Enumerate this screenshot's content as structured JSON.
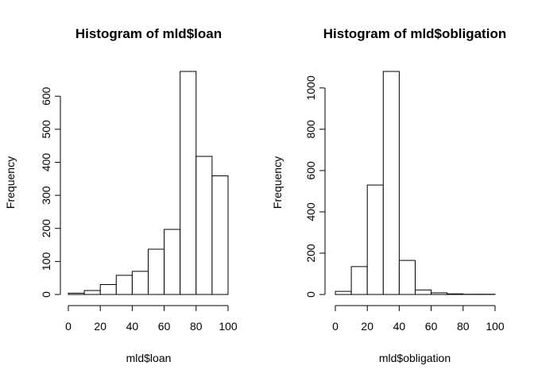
{
  "chart_data": [
    {
      "type": "bar",
      "title": "Histogram of mld$loan",
      "xlabel": "mld$loan",
      "ylabel": "Frequency",
      "bin_edges": [
        0,
        10,
        20,
        30,
        40,
        50,
        60,
        70,
        80,
        90,
        100
      ],
      "values": [
        4,
        12,
        30,
        58,
        70,
        137,
        197,
        675,
        418,
        359
      ],
      "x_ticks": [
        0,
        20,
        40,
        60,
        80,
        100
      ],
      "y_ticks": [
        0,
        100,
        200,
        300,
        400,
        500,
        600
      ],
      "xlim": [
        0,
        100
      ],
      "ylim": [
        0,
        675
      ],
      "grid": false
    },
    {
      "type": "bar",
      "title": "Histogram of mld$obligation",
      "xlabel": "mld$obligation",
      "ylabel": "Frequency",
      "bin_edges": [
        0,
        10,
        20,
        30,
        40,
        50,
        60,
        70,
        80,
        90,
        100
      ],
      "values": [
        15,
        135,
        530,
        1080,
        165,
        22,
        8,
        3,
        1,
        1
      ],
      "x_ticks": [
        0,
        20,
        40,
        60,
        80,
        100
      ],
      "y_ticks": [
        0,
        200,
        400,
        600,
        800,
        1000
      ],
      "xlim": [
        0,
        100
      ],
      "ylim": [
        0,
        1080
      ],
      "grid": false
    }
  ]
}
